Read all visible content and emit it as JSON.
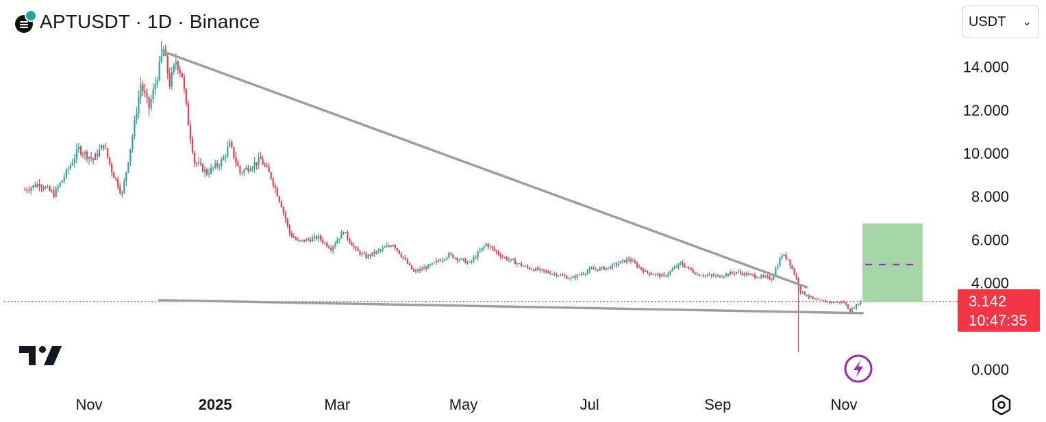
{
  "header": {
    "title": "APTUSDT · 1D · Binance",
    "coin_icon": "aptos-coin-icon"
  },
  "currency_select": {
    "value": "USDT",
    "icon": "chevron-down-icon"
  },
  "price_tag": {
    "price": "3.142",
    "countdown": "10:47:35",
    "color": "#f23645"
  },
  "icons": {
    "logo": "tradingview-logo",
    "bolt": "lightning-bolt-icon",
    "settings": "settings-hexagon-icon"
  },
  "chart_data": {
    "type": "candlestick",
    "symbol": "APTUSDT",
    "interval": "1D",
    "exchange": "Binance",
    "ylim": [
      0,
      15.2
    ],
    "y_ticks": [
      "14.000",
      "12.000",
      "10.000",
      "8.000",
      "6.000",
      "4.000",
      "0.000"
    ],
    "x_ticks": [
      {
        "label": "Nov",
        "date": "2024-11-01",
        "bold": false
      },
      {
        "label": "2025",
        "date": "2025-01-01",
        "bold": true
      },
      {
        "label": "Mar",
        "date": "2025-03-01",
        "bold": false
      },
      {
        "label": "May",
        "date": "2025-05-01",
        "bold": false
      },
      {
        "label": "Jul",
        "date": "2025-07-01",
        "bold": false
      },
      {
        "label": "Sep",
        "date": "2025-09-01",
        "bold": false
      },
      {
        "label": "Nov",
        "date": "2025-11-01",
        "bold": false
      }
    ],
    "last_price": 3.142,
    "up_color": "#26a69a",
    "down_color": "#f23645",
    "price_path": [
      [
        "2024-10-01",
        8.3
      ],
      [
        "2024-10-08",
        8.6
      ],
      [
        "2024-10-15",
        8.1
      ],
      [
        "2024-10-21",
        9.1
      ],
      [
        "2024-10-27",
        10.2
      ],
      [
        "2024-11-03",
        9.7
      ],
      [
        "2024-11-08",
        10.4
      ],
      [
        "2024-11-12",
        9.2
      ],
      [
        "2024-11-17",
        8.1
      ],
      [
        "2024-11-22",
        10.8
      ],
      [
        "2024-11-26",
        13.2
      ],
      [
        "2024-11-30",
        12.1
      ],
      [
        "2024-12-04",
        13.6
      ],
      [
        "2024-12-07",
        14.8
      ],
      [
        "2024-12-10",
        13.2
      ],
      [
        "2024-12-13",
        14.3
      ],
      [
        "2024-12-16",
        13.6
      ],
      [
        "2024-12-19",
        11.4
      ],
      [
        "2024-12-22",
        9.6
      ],
      [
        "2024-12-28",
        9.1
      ],
      [
        "2025-01-04",
        9.6
      ],
      [
        "2025-01-08",
        10.4
      ],
      [
        "2025-01-13",
        9.1
      ],
      [
        "2025-01-18",
        9.4
      ],
      [
        "2025-01-23",
        9.7
      ],
      [
        "2025-01-28",
        8.9
      ],
      [
        "2025-02-02",
        7.6
      ],
      [
        "2025-02-06",
        6.3
      ],
      [
        "2025-02-10",
        5.9
      ],
      [
        "2025-02-20",
        6.1
      ],
      [
        "2025-02-26",
        5.6
      ],
      [
        "2025-03-04",
        6.4
      ],
      [
        "2025-03-10",
        5.5
      ],
      [
        "2025-03-15",
        5.2
      ],
      [
        "2025-03-28",
        5.8
      ],
      [
        "2025-04-07",
        4.5
      ],
      [
        "2025-04-15",
        4.8
      ],
      [
        "2025-04-24",
        5.3
      ],
      [
        "2025-05-04",
        4.9
      ],
      [
        "2025-05-12",
        5.8
      ],
      [
        "2025-05-20",
        5.2
      ],
      [
        "2025-06-01",
        4.7
      ],
      [
        "2025-06-15",
        4.4
      ],
      [
        "2025-06-22",
        4.2
      ],
      [
        "2025-07-01",
        4.6
      ],
      [
        "2025-07-10",
        4.7
      ],
      [
        "2025-07-20",
        5.1
      ],
      [
        "2025-07-28",
        4.5
      ],
      [
        "2025-08-06",
        4.3
      ],
      [
        "2025-08-14",
        4.9
      ],
      [
        "2025-08-22",
        4.4
      ],
      [
        "2025-09-01",
        4.3
      ],
      [
        "2025-09-10",
        4.5
      ],
      [
        "2025-09-20",
        4.3
      ],
      [
        "2025-09-27",
        4.2
      ],
      [
        "2025-10-02",
        5.3
      ],
      [
        "2025-10-05",
        5.1
      ],
      [
        "2025-10-09",
        4.2
      ],
      [
        "2025-10-11",
        3.6
      ],
      [
        "2025-10-18",
        3.2
      ],
      [
        "2025-10-25",
        3.1
      ],
      [
        "2025-11-01",
        3.1
      ],
      [
        "2025-11-04",
        2.7
      ],
      [
        "2025-11-09",
        3.142
      ]
    ],
    "notable_wicks": [
      {
        "date": "2025-10-10",
        "low": 0.8
      },
      {
        "date": "2024-12-06",
        "high": 15.2
      }
    ],
    "trendlines": [
      {
        "from": [
          "2024-12-07",
          14.7
        ],
        "to": [
          "2025-10-14",
          3.8
        ],
        "color": "#9e9e9e"
      },
      {
        "from": [
          "2024-12-05",
          3.2
        ],
        "to": [
          "2025-11-10",
          2.6
        ],
        "color": "#9e9e9e"
      }
    ],
    "target_box": {
      "x0": "2025-11-10",
      "x1": "2025-12-09",
      "y0": 3.1,
      "y1": 6.75,
      "mid": 4.85,
      "fill": "#a5d6a7",
      "dash_color": "#9c27b0"
    }
  }
}
